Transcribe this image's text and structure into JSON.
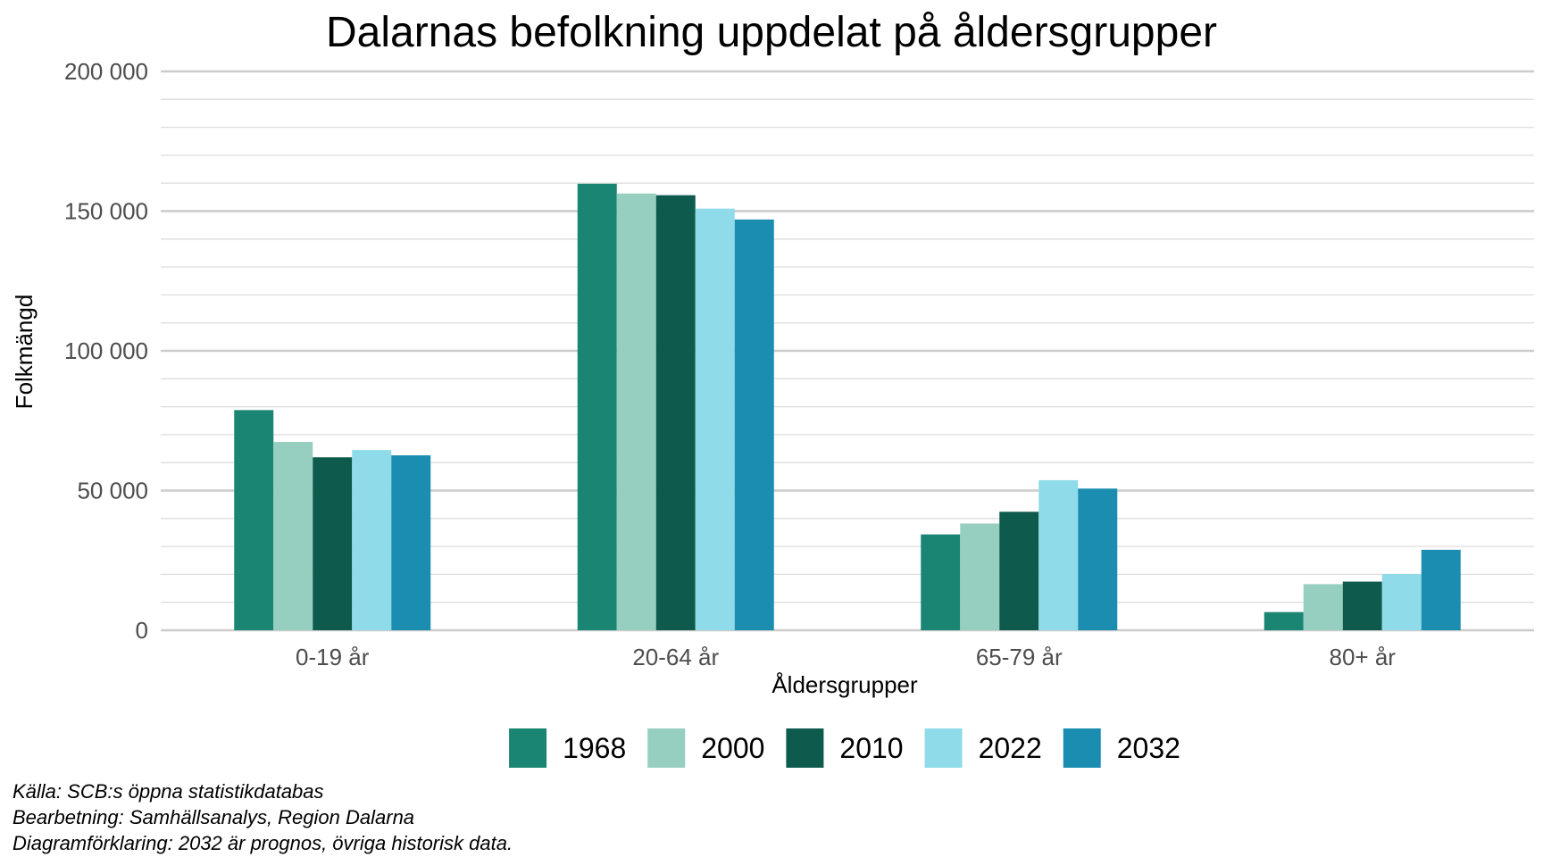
{
  "chart_data": {
    "type": "bar",
    "title": "Dalarnas befolkning uppdelat på åldersgrupper",
    "xlabel": "Åldersgrupper",
    "ylabel": "Folkmängd",
    "ylim": [
      0,
      200000
    ],
    "yticks": [
      0,
      50000,
      100000,
      150000,
      200000
    ],
    "ytick_labels": [
      "0",
      "50 000",
      "100 000",
      "150 000",
      "200 000"
    ],
    "categories": [
      "0-19 år",
      "20-64 år",
      "65-79 år",
      "80+ år"
    ],
    "grid": true,
    "legend_position": "bottom",
    "series": [
      {
        "name": "1968",
        "color": "#1a8572",
        "values": [
          78800,
          159800,
          34300,
          6500
        ]
      },
      {
        "name": "2000",
        "color": "#96cfc0",
        "values": [
          67400,
          156300,
          38200,
          16500
        ]
      },
      {
        "name": "2010",
        "color": "#0e5a4d",
        "values": [
          61900,
          155700,
          42400,
          17400
        ]
      },
      {
        "name": "2022",
        "color": "#8fdbe9",
        "values": [
          64500,
          150900,
          53700,
          20100
        ]
      },
      {
        "name": "2032",
        "color": "#1a8db1",
        "values": [
          62600,
          147000,
          50700,
          28800
        ]
      }
    ]
  },
  "caption": {
    "source": "Källa: SCB:s öppna statistikdatabas",
    "processing": "Bearbetning: Samhällsanalys, Region Dalarna",
    "explanation": "Diagramförklaring: 2032 är prognos, övriga historisk data."
  }
}
